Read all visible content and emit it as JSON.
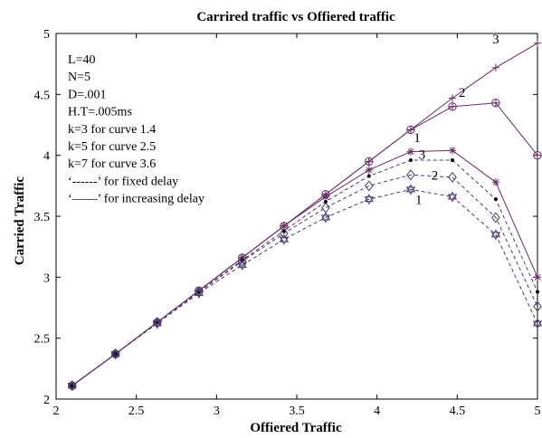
{
  "chart_data": {
    "type": "line",
    "title": "Carrired traffic vs Offiered traffic",
    "xlabel": "Offiered Traffic",
    "ylabel": "Carried Traffic",
    "xlim": [
      2,
      5
    ],
    "ylim": [
      2,
      5
    ],
    "xticks": [
      "2",
      "2.5",
      "3",
      "3.5",
      "4",
      "4.5",
      "5"
    ],
    "yticks": [
      "2",
      "2.5",
      "3",
      "3.5",
      "4",
      "4.5",
      "5"
    ],
    "x": [
      2.1,
      2.37,
      2.63,
      2.89,
      3.16,
      3.42,
      3.68,
      3.95,
      4.21,
      4.47,
      4.74,
      5.0
    ],
    "annotations": [
      "L=40",
      "N=5",
      "D=.001",
      "H.T=.005ms",
      "k=3 for curve 1.4",
      "k=5 for curve 2.5",
      "k=7 for curve 3.6",
      "‘------’ for fixed delay",
      "‘——’ for increasing delay"
    ],
    "series": [
      {
        "marker": "plus",
        "style": "solid",
        "color": "#6a2a68",
        "values": [
          2.11,
          2.37,
          2.63,
          2.89,
          3.16,
          3.42,
          3.68,
          3.95,
          4.21,
          4.47,
          4.72,
          4.92
        ]
      },
      {
        "marker": "circle",
        "style": "solid",
        "color": "#6a2a68",
        "values": [
          2.11,
          2.37,
          2.63,
          2.89,
          3.16,
          3.42,
          3.68,
          3.95,
          4.21,
          4.4,
          4.43,
          4.0
        ]
      },
      {
        "marker": "star",
        "style": "solid",
        "color": "#6a2a68",
        "values": [
          2.11,
          2.37,
          2.63,
          2.89,
          3.16,
          3.42,
          3.66,
          3.88,
          4.03,
          4.04,
          3.78,
          3.0
        ]
      },
      {
        "marker": "dot",
        "style": "dashed",
        "color": "#4a3a72",
        "values": [
          2.11,
          2.37,
          2.63,
          2.88,
          3.14,
          3.38,
          3.62,
          3.83,
          3.96,
          3.96,
          3.64,
          2.88
        ]
      },
      {
        "marker": "diamond",
        "style": "dashed",
        "color": "#4a3a72",
        "values": [
          2.11,
          2.37,
          2.63,
          2.88,
          3.13,
          3.36,
          3.57,
          3.75,
          3.84,
          3.82,
          3.49,
          2.76
        ]
      },
      {
        "marker": "hexstar",
        "style": "dashed",
        "color": "#4a3a72",
        "values": [
          2.11,
          2.37,
          2.62,
          2.87,
          3.1,
          3.31,
          3.49,
          3.64,
          3.72,
          3.66,
          3.35,
          2.62
        ]
      }
    ],
    "curve_labels": [
      {
        "text": "3",
        "x": 4.74,
        "y": 4.92
      },
      {
        "text": "2",
        "x": 4.53,
        "y": 4.48
      },
      {
        "text": "1",
        "x": 4.25,
        "y": 4.11
      },
      {
        "text": "3",
        "x": 4.28,
        "y": 3.97
      },
      {
        "text": "2",
        "x": 4.36,
        "y": 3.8
      },
      {
        "text": "1",
        "x": 4.26,
        "y": 3.6
      }
    ]
  }
}
